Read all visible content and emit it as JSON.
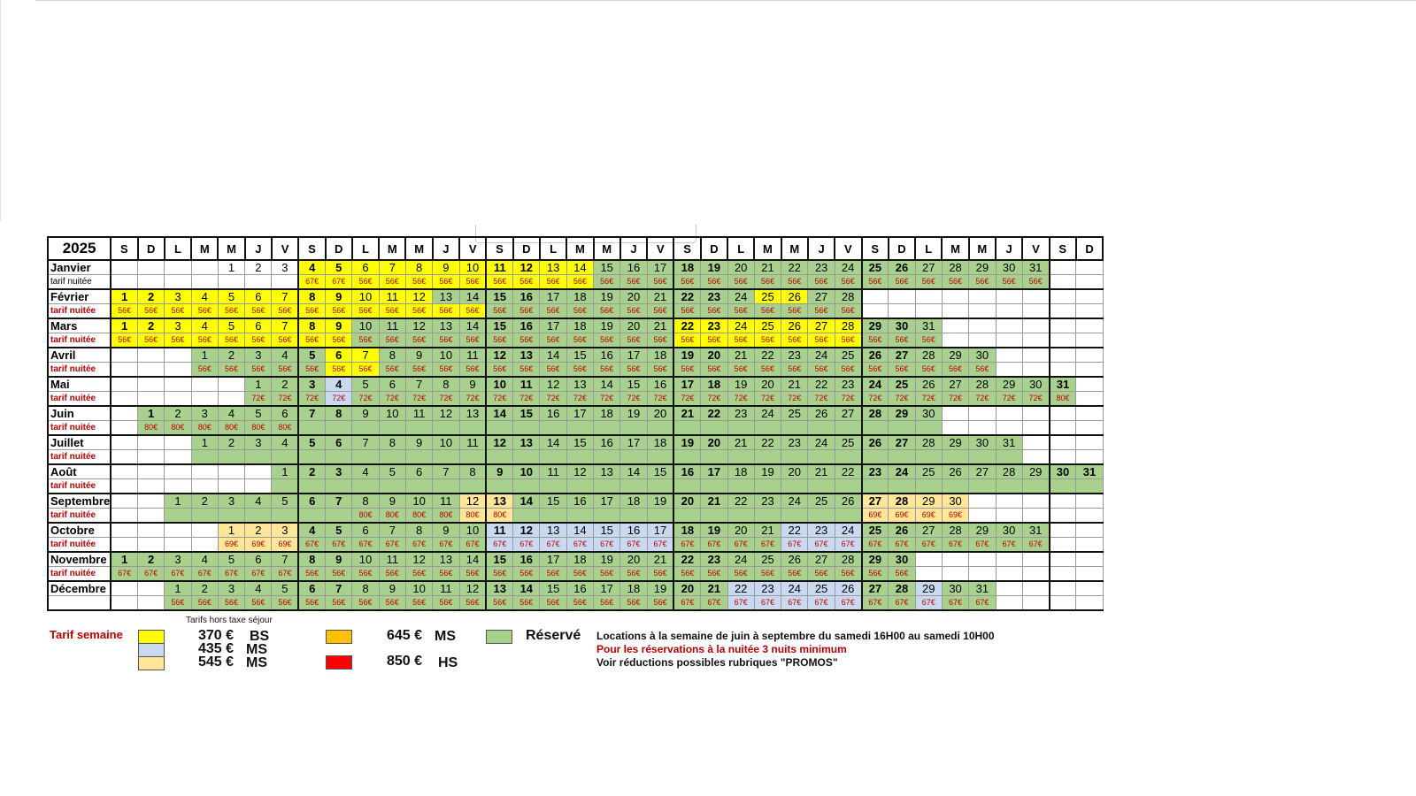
{
  "year": "2025",
  "weekday_headers": [
    "S",
    "D",
    "L",
    "M",
    "M",
    "J",
    "V",
    "S",
    "D",
    "L",
    "M",
    "M",
    "J",
    "V",
    "S",
    "D",
    "L",
    "M",
    "M",
    "J",
    "V",
    "S",
    "D",
    "L",
    "M",
    "M",
    "J",
    "V",
    "S",
    "D",
    "L",
    "M",
    "M",
    "J",
    "V",
    "S",
    "D"
  ],
  "months": [
    {
      "name": "Janvier",
      "tarif_label": "tarif nuitée",
      "tarif_style": "plain",
      "start": 4,
      "days": 31
    },
    {
      "name": "Février",
      "tarif_label": "tarif nuitée",
      "start": 0,
      "days": 28
    },
    {
      "name": "Mars",
      "tarif_label": "tarif nuitée",
      "start": 0,
      "days": 31
    },
    {
      "name": "Avril",
      "tarif_label": "tarif nuitée",
      "start": 3,
      "days": 30
    },
    {
      "name": "Mai",
      "tarif_label": "tarif nuitée",
      "start": 5,
      "days": 31
    },
    {
      "name": "Juin",
      "tarif_label": "tarif nuitée",
      "start": 1,
      "days": 30
    },
    {
      "name": "Juillet",
      "tarif_label": "tarif nuitée",
      "start": 3,
      "days": 31
    },
    {
      "name": "Août",
      "tarif_label": "tarif nuitée",
      "start": 6,
      "days": 31
    },
    {
      "name": "Septembre",
      "tarif_label": "tarif nuitée",
      "start": 2,
      "days": 30
    },
    {
      "name": "Octobre",
      "tarif_label": "tarif nuitée",
      "start": 4,
      "days": 31
    },
    {
      "name": "Novembre",
      "tarif_label": "tarif nuitée",
      "start": 0,
      "days": 30
    },
    {
      "name": "Décembre",
      "tarif_label": "",
      "start": 2,
      "days": 31
    }
  ],
  "legend": {
    "tarif_semaine": "Tarif semaine",
    "tarifs_hors_taxe": "Tarifs hors taxe séjour",
    "bs_price": "370 €",
    "bs_label": "BS",
    "ms1_price": "435 €",
    "ms1_label": "MS",
    "ms2_price": "545 €",
    "ms2_label": "MS",
    "ms3_price": "645 €",
    "ms3_label": "MS",
    "hs_price": "850 €",
    "hs_label": "HS",
    "reserve": "Réservé",
    "note1": "Locations à la semaine de juin à septembre du samedi 16H00 au samedi 10H00",
    "note2": "Pour les réservations à la nuitée 3 nuits minimum",
    "note3": "Voir réductions possibles rubriques \"PROMOS\""
  },
  "colors": {
    "bs": "#ffff00",
    "ms_blue": "#c9d9f0",
    "ms_peach": "#ffe699",
    "ms_orange": "#ffc000",
    "hs": "#ff0000",
    "reserve": "#a9d18e",
    "tarif_text": "#c00000"
  }
}
